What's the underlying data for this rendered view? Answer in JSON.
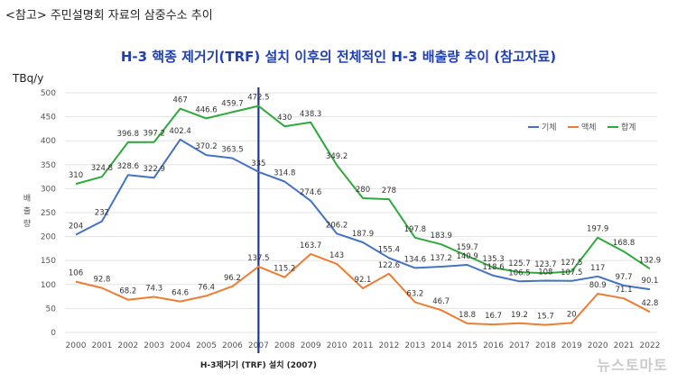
{
  "header": {
    "note": "<참고> 주민설명회 자료의 삼중수소 추이"
  },
  "watermark": "뉴스토마토",
  "chart_data": {
    "type": "line",
    "title": "H-3 핵종 제거기(TRF) 설치 이후의 전체적인 H-3 배출량 추이 (참고자료)",
    "ylabel": "배출량",
    "yunit": "TBq/y",
    "ylim": [
      0,
      500
    ],
    "yticks": [
      0,
      50,
      100,
      150,
      200,
      250,
      300,
      350,
      400,
      450,
      500
    ],
    "grid": true,
    "legend_position": "top-right",
    "categories": [
      "2000",
      "2001",
      "2002",
      "2003",
      "2004",
      "2005",
      "2006",
      "2007",
      "2008",
      "2009",
      "2010",
      "2011",
      "2012",
      "2013",
      "2014",
      "2015",
      "2016",
      "2017",
      "2018",
      "2019",
      "2020",
      "2021",
      "2022"
    ],
    "series": [
      {
        "name": "기체",
        "color": "#4472c4",
        "values": [
          204,
          232,
          328.6,
          322.9,
          402.4,
          370.2,
          363.5,
          335,
          314.8,
          274.6,
          206.2,
          187.9,
          155.4,
          134.6,
          137.2,
          140.9,
          118.6,
          106.5,
          108,
          107.5,
          117,
          97.7,
          90.1
        ],
        "labels": [
          "204",
          "232",
          "328.6",
          "322.9",
          "402.4",
          "370.2",
          "363.5",
          "335",
          "314.8",
          "274.6",
          "206.2",
          "187.9",
          "155.4",
          "134.6",
          "137.2",
          "140.9",
          "118.6",
          "106.5",
          "108",
          "107.5",
          "117",
          "97.7",
          "90.1"
        ]
      },
      {
        "name": "액체",
        "color": "#ed7d31",
        "values": [
          106,
          92.8,
          68.2,
          74.3,
          64.6,
          76.4,
          96.2,
          137.5,
          115.2,
          163.7,
          143,
          92.1,
          122.6,
          63.2,
          46.7,
          18.8,
          16.7,
          19.2,
          15.7,
          20,
          80.9,
          71.1,
          42.8
        ],
        "labels": [
          "106",
          "92.8",
          "68.2",
          "74.3",
          "64.6",
          "76.4",
          "96.2",
          "137.5",
          "115.2",
          "163.7",
          "143",
          "92.1",
          "122.6",
          "63.2",
          "46.7",
          "18.8",
          "16.7",
          "19.2",
          "15.7",
          "20",
          "80.9",
          "71.1",
          "42.8"
        ]
      },
      {
        "name": "합계",
        "color": "#2eaa3c",
        "values": [
          310,
          324.8,
          396.8,
          397.2,
          467,
          446.6,
          459.7,
          472.5,
          430,
          438.3,
          349.2,
          280,
          278,
          197.8,
          183.9,
          159.7,
          135.3,
          125.7,
          123.7,
          127.5,
          197.9,
          168.8,
          132.9
        ],
        "labels": [
          "310",
          "324.8",
          "396.8",
          "397.2",
          "467",
          "446.6",
          "459.7",
          "472.5",
          "430",
          "438.3",
          "349.2",
          "280",
          "278",
          "197.8",
          "183.9",
          "159.7",
          "135.3",
          "125.7",
          "123.7",
          "127.5",
          "197.9",
          "168.8",
          "132.9"
        ]
      }
    ],
    "annotation": {
      "x": "2007",
      "label": "H-3제거기 (TRF) 설치 (2007)",
      "color": "#1f3a93"
    }
  }
}
